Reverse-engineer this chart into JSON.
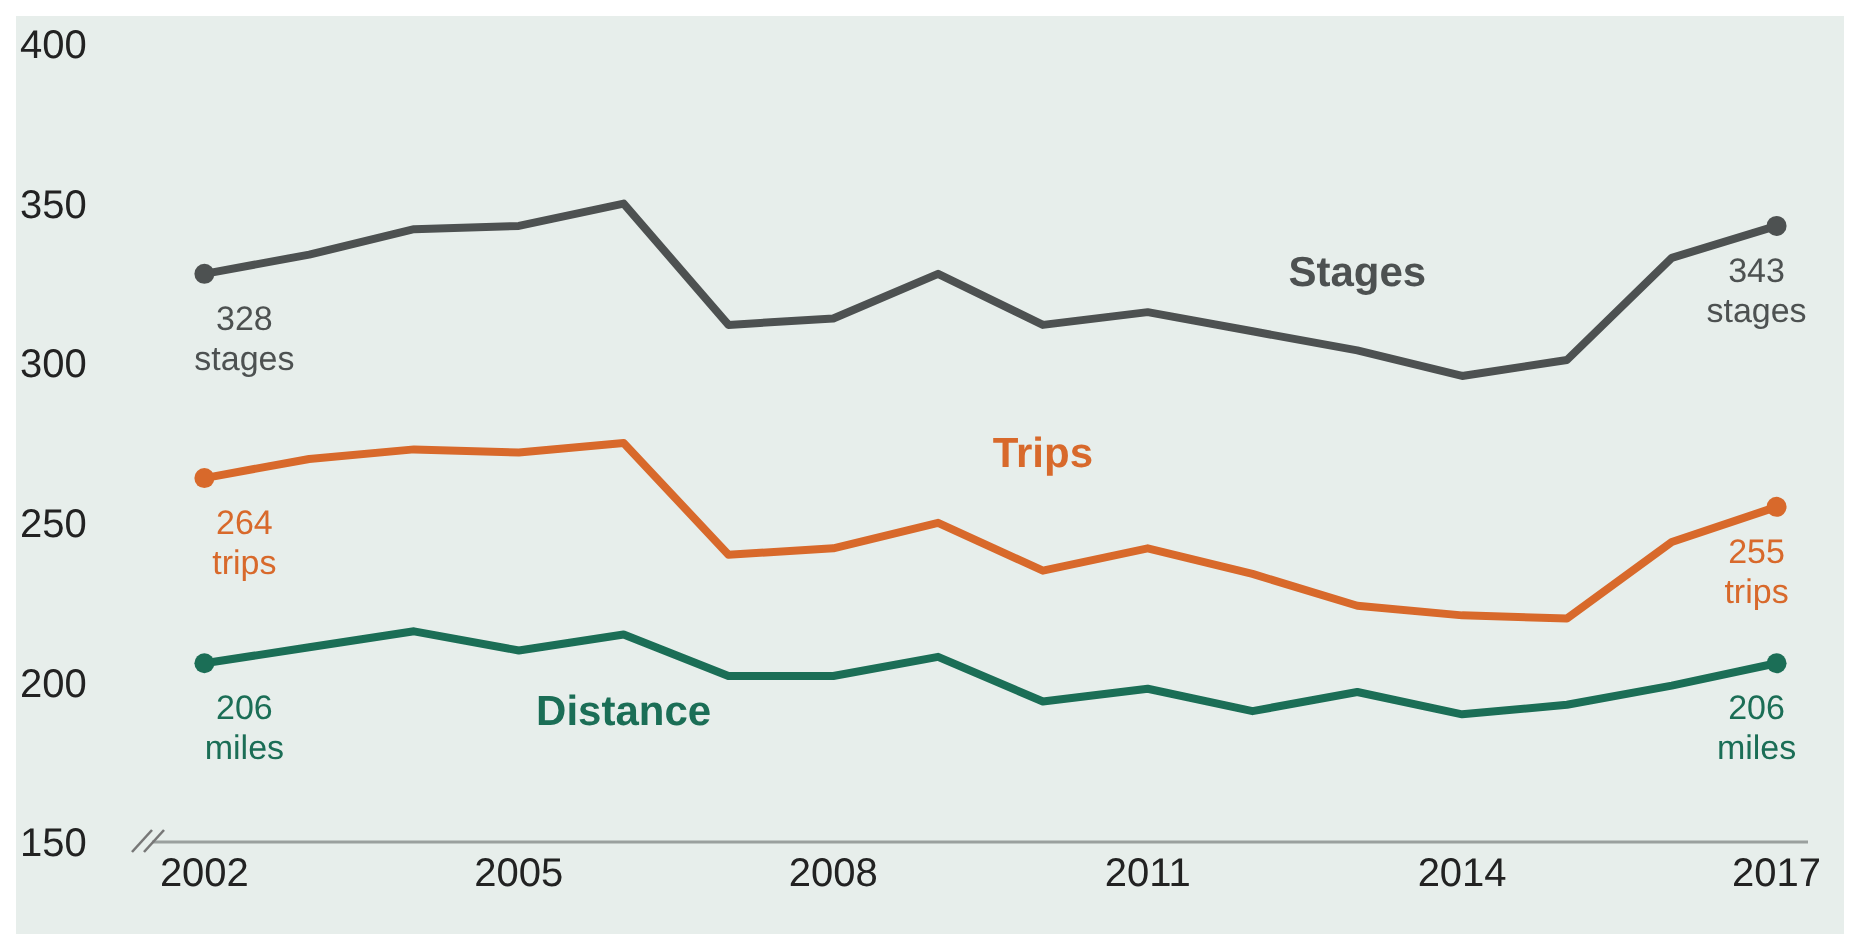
{
  "chart_data": {
    "type": "line",
    "x": [
      2002,
      2003,
      2004,
      2005,
      2006,
      2007,
      2008,
      2009,
      2010,
      2011,
      2012,
      2013,
      2014,
      2015,
      2016,
      2017
    ],
    "series": [
      {
        "name": "Stages",
        "color": "#4d5151",
        "values": [
          328,
          334,
          342,
          343,
          350,
          312,
          314,
          328,
          312,
          316,
          310,
          304,
          296,
          301,
          333,
          343
        ],
        "value_labels": [
          "328\nstages",
          null,
          null,
          null,
          null,
          null,
          null,
          null,
          null,
          null,
          null,
          null,
          null,
          null,
          null,
          "343\nstages"
        ]
      },
      {
        "name": "Trips",
        "color": "#d8692b",
        "values": [
          264,
          270,
          273,
          272,
          275,
          240,
          242,
          250,
          235,
          242,
          234,
          224,
          221,
          220,
          244,
          255
        ],
        "value_labels": [
          "264\ntrips",
          null,
          null,
          null,
          null,
          null,
          null,
          null,
          null,
          null,
          null,
          null,
          null,
          null,
          null,
          "255\ntrips"
        ]
      },
      {
        "name": "Distance",
        "color": "#1b6e56",
        "values": [
          206,
          211,
          216,
          210,
          215,
          202,
          202,
          208,
          194,
          198,
          191,
          197,
          190,
          193,
          199,
          206
        ],
        "value_labels": [
          "206\nmiles",
          null,
          null,
          null,
          null,
          null,
          null,
          null,
          null,
          null,
          null,
          null,
          null,
          null,
          null,
          "206\nmiles"
        ]
      }
    ],
    "xlim": [
      2001.5,
      2017.3
    ],
    "xticks": [
      2002,
      2005,
      2008,
      2011,
      2014,
      2017
    ],
    "ylim": [
      150,
      400
    ],
    "yticks": [
      150,
      200,
      250,
      300,
      350,
      400
    ],
    "grid": false,
    "legend": false,
    "marker": "none",
    "line_style": "solid"
  }
}
